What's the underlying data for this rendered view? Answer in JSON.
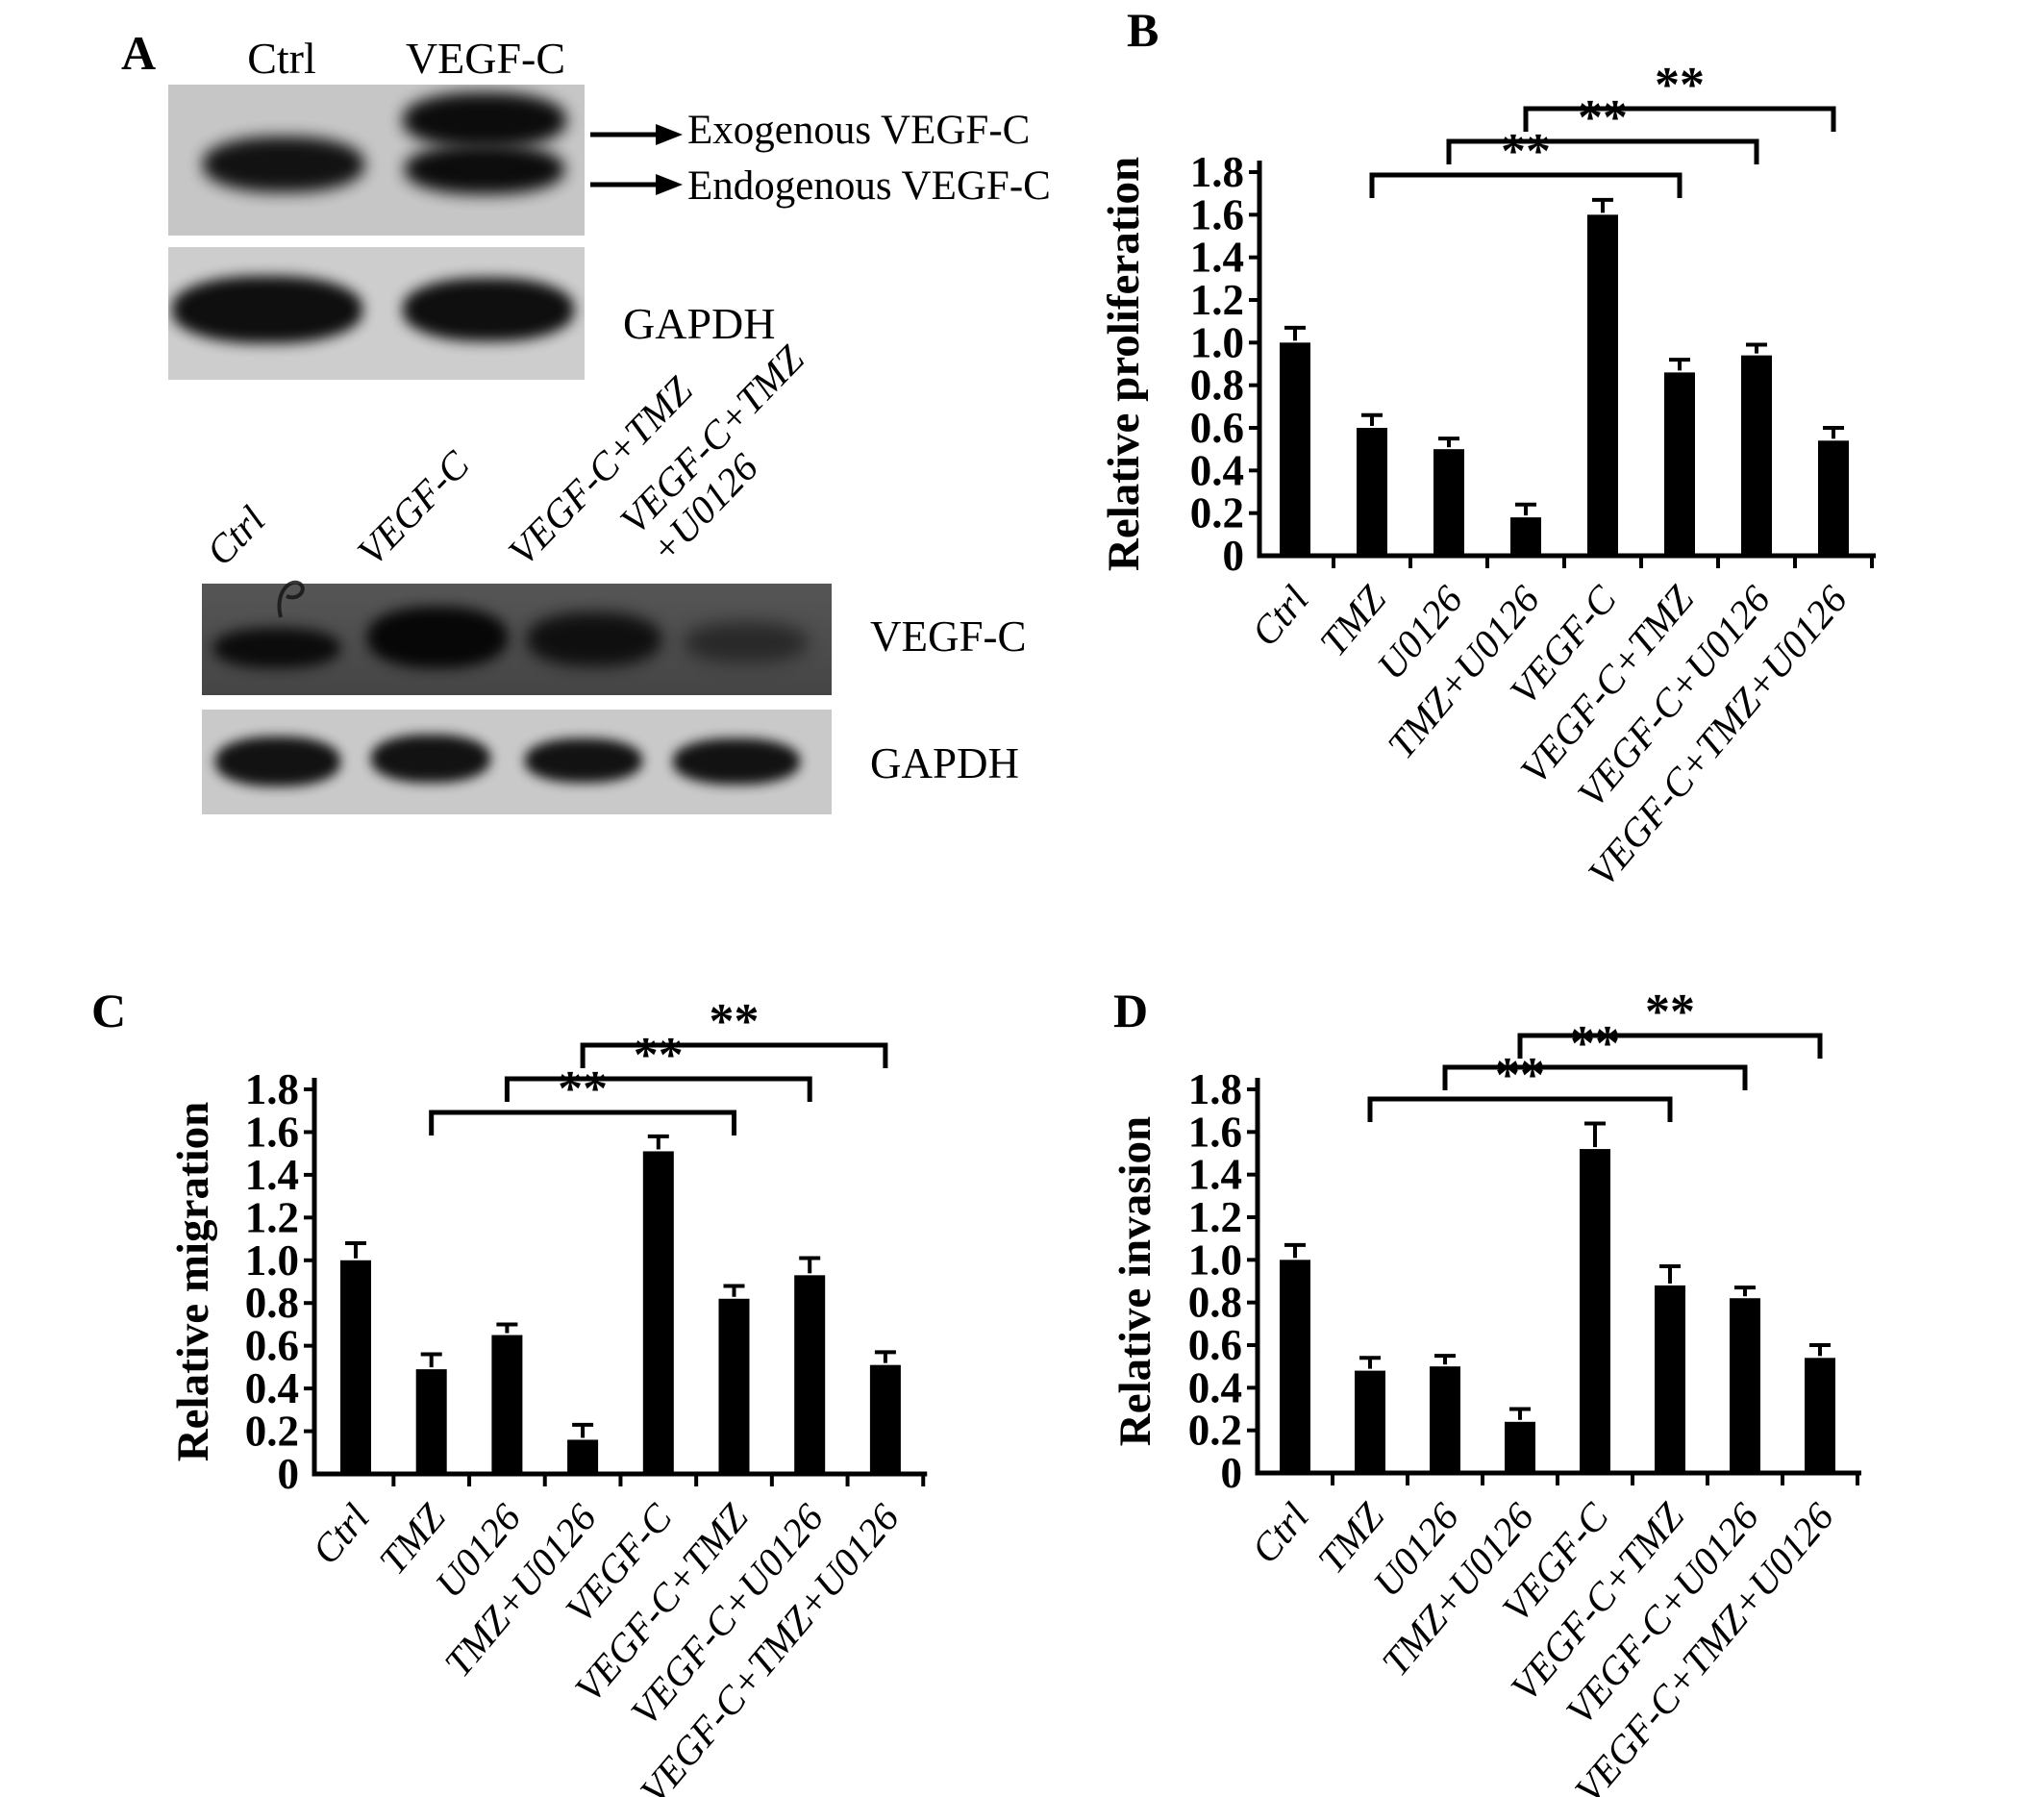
{
  "figure": {
    "panelA": {
      "label": "A",
      "top_blot": {
        "lane_labels": [
          "Ctrl",
          "VEGF-C"
        ],
        "annotations": [
          "Exogenous VEGF-C",
          "Endogenous VEGF-C"
        ],
        "loading_control_label": "GAPDH"
      },
      "bottom_blot": {
        "lane_labels": [
          "Ctrl",
          "VEGF-C",
          "VEGF-C+TMZ",
          "VEGF-C+TMZ\n+U0126"
        ],
        "row_labels": [
          "VEGF-C",
          "GAPDH"
        ]
      }
    }
  },
  "chart_data": [
    {
      "panel_label": "B",
      "type": "bar",
      "title": "",
      "xlabel": "",
      "ylabel": "Relative proliferation",
      "categories": [
        "Ctrl",
        "TMZ",
        "U0126",
        "TMZ+U0126",
        "VEGF-C",
        "VEGF-C+TMZ",
        "VEGF-C+U0126",
        "VEGF-C+TMZ+U0126"
      ],
      "values": [
        1.0,
        0.6,
        0.5,
        0.18,
        1.6,
        0.86,
        0.94,
        0.54
      ],
      "errors": [
        0.07,
        0.06,
        0.05,
        0.06,
        0.07,
        0.06,
        0.05,
        0.06
      ],
      "ylim": [
        0,
        1.8
      ],
      "ytick_labels": [
        "0",
        "0.2",
        "0.4",
        "0.6",
        "0.8",
        "1.0",
        "1.2",
        "1.4",
        "1.6",
        "1.8"
      ],
      "grid": false,
      "legend": null,
      "bar_color": "#000000",
      "significance": [
        {
          "from": "TMZ",
          "to": "VEGF-C+TMZ",
          "label": "**"
        },
        {
          "from": "U0126",
          "to": "VEGF-C+U0126",
          "label": "**"
        },
        {
          "from": "TMZ+U0126",
          "to": "VEGF-C+TMZ+U0126",
          "label": "**"
        }
      ]
    },
    {
      "panel_label": "C",
      "type": "bar",
      "title": "",
      "xlabel": "",
      "ylabel": "Relative migration",
      "categories": [
        "Ctrl",
        "TMZ",
        "U0126",
        "TMZ+U0126",
        "VEGF-C",
        "VEGF-C+TMZ",
        "VEGF-C+U0126",
        "VEGF-C+TMZ+U0126"
      ],
      "values": [
        1.0,
        0.49,
        0.65,
        0.16,
        1.51,
        0.82,
        0.93,
        0.51
      ],
      "errors": [
        0.08,
        0.07,
        0.05,
        0.07,
        0.07,
        0.06,
        0.08,
        0.06
      ],
      "ylim": [
        0,
        1.8
      ],
      "ytick_labels": [
        "0",
        "0.2",
        "0.4",
        "0.6",
        "0.8",
        "1.0",
        "1.2",
        "1.4",
        "1.6",
        "1.8"
      ],
      "grid": false,
      "legend": null,
      "bar_color": "#000000",
      "significance": [
        {
          "from": "TMZ",
          "to": "VEGF-C+TMZ",
          "label": "**"
        },
        {
          "from": "U0126",
          "to": "VEGF-C+U0126",
          "label": "**"
        },
        {
          "from": "TMZ+U0126",
          "to": "VEGF-C+TMZ+U0126",
          "label": "**"
        }
      ]
    },
    {
      "panel_label": "D",
      "type": "bar",
      "title": "",
      "xlabel": "",
      "ylabel": "Relative invasion",
      "categories": [
        "Ctrl",
        "TMZ",
        "U0126",
        "TMZ+U0126",
        "VEGF-C",
        "VEGF-C+TMZ",
        "VEGF-C+U0126",
        "VEGF-C+TMZ+U0126"
      ],
      "values": [
        1.0,
        0.48,
        0.5,
        0.24,
        1.52,
        0.88,
        0.82,
        0.54
      ],
      "errors": [
        0.07,
        0.06,
        0.05,
        0.06,
        0.12,
        0.09,
        0.05,
        0.06
      ],
      "ylim": [
        0,
        1.8
      ],
      "ytick_labels": [
        "0",
        "0.2",
        "0.4",
        "0.6",
        "0.8",
        "1.0",
        "1.2",
        "1.4",
        "1.6",
        "1.8"
      ],
      "grid": false,
      "legend": null,
      "bar_color": "#000000",
      "significance": [
        {
          "from": "TMZ",
          "to": "VEGF-C+TMZ",
          "label": "**"
        },
        {
          "from": "U0126",
          "to": "VEGF-C+U0126",
          "label": "**"
        },
        {
          "from": "TMZ+U0126",
          "to": "VEGF-C+TMZ+U0126",
          "label": "**"
        }
      ]
    }
  ]
}
